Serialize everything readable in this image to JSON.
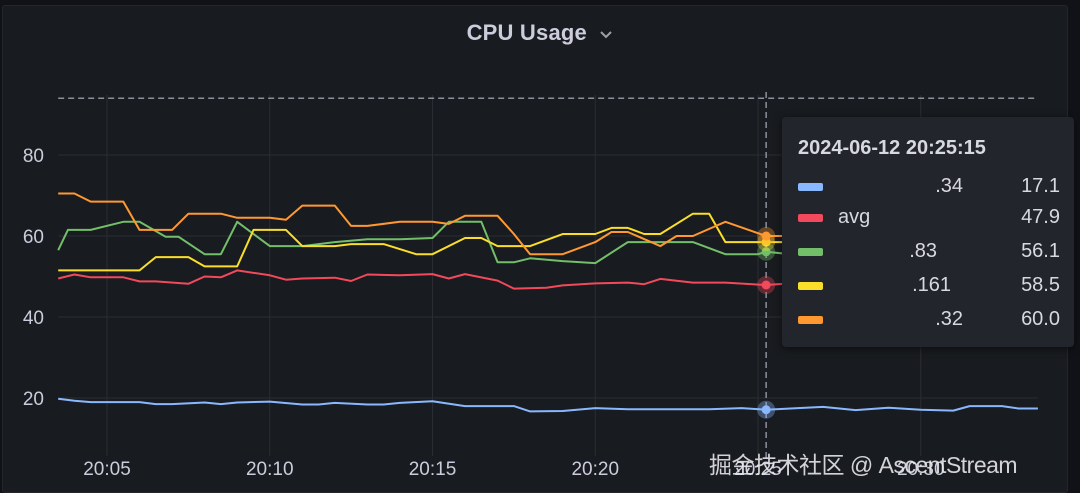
{
  "panel": {
    "title": "CPU Usage",
    "menu_icon": "chevron-down-icon"
  },
  "tooltip": {
    "timestamp": "2024-06-12 20:25:15",
    "rows": [
      {
        "name": ".34",
        "value": "17.1",
        "color": "#8ab8ff"
      },
      {
        "name": "avg",
        "value": "47.9",
        "color": "#f2495c"
      },
      {
        "name": ".83",
        "value": "56.1",
        "color": "#73bf69"
      },
      {
        "name": ".161",
        "value": "58.5",
        "color": "#fade2a"
      },
      {
        "name": ".32",
        "value": "60.0",
        "color": "#ff9830"
      }
    ]
  },
  "watermark": "掘金技术社区 @ AscentStream",
  "colors": {
    "background": "#181b1f",
    "grid": "#2a2d33",
    "axis_text": "#ccccdc",
    "threshold": "#8e8e9a"
  },
  "chart_data": {
    "type": "line",
    "title": "CPU Usage",
    "xlabel": "",
    "ylabel": "",
    "x_ticks": [
      "20:05",
      "20:10",
      "20:15",
      "20:20",
      "20:25",
      "20:30"
    ],
    "y_ticks": [
      20,
      40,
      60,
      80
    ],
    "ylim": [
      0,
      95
    ],
    "x_range_minutes": [
      3.5,
      33.6
    ],
    "threshold_line": 94,
    "grid": true,
    "legend_position": "tooltip",
    "hover_time_minute": 25.25,
    "series": [
      {
        "name": ".34",
        "color": "#8ab8ff",
        "x": [
          3.5,
          4.0,
          4.5,
          6.0,
          6.5,
          7.0,
          8.0,
          8.5,
          9.0,
          10.0,
          11.0,
          11.5,
          12.0,
          13.0,
          13.5,
          14.0,
          15.0,
          16.0,
          17.5,
          18.0,
          19.0,
          20.0,
          21.0,
          22.0,
          23.5,
          24.5,
          25.25,
          26.0,
          27.0,
          28.0,
          29.0,
          30.0,
          31.0,
          31.5,
          32.5,
          33.0,
          33.6
        ],
        "values": [
          19.8,
          19.3,
          19.0,
          19.0,
          18.5,
          18.5,
          18.9,
          18.5,
          18.9,
          19.1,
          18.4,
          18.4,
          18.8,
          18.4,
          18.4,
          18.8,
          19.2,
          18.0,
          18.0,
          16.7,
          16.8,
          17.5,
          17.2,
          17.2,
          17.2,
          17.5,
          17.1,
          17.4,
          17.8,
          17.0,
          17.6,
          17.1,
          16.9,
          18.0,
          18.0,
          17.4,
          17.4
        ]
      },
      {
        "name": "avg",
        "color": "#f2495c",
        "x": [
          3.5,
          4.0,
          4.5,
          5.5,
          6.0,
          6.5,
          7.5,
          8.0,
          8.5,
          9.0,
          10.0,
          10.5,
          11.0,
          12.0,
          12.5,
          13.0,
          14.0,
          15.0,
          15.5,
          16.0,
          17.0,
          17.5,
          18.5,
          19.0,
          20.0,
          21.0,
          21.5,
          22.0,
          23.0,
          24.0,
          25.25,
          26.0,
          27.0,
          28.0,
          29.0,
          30.0,
          31.0,
          32.0,
          33.0,
          33.6
        ],
        "values": [
          49.5,
          50.5,
          49.8,
          49.8,
          48.8,
          48.8,
          48.2,
          50.0,
          49.8,
          51.5,
          50.3,
          49.2,
          49.5,
          49.7,
          48.9,
          50.5,
          50.3,
          50.6,
          49.5,
          50.6,
          49.0,
          47.0,
          47.2,
          47.8,
          48.3,
          48.5,
          48.1,
          49.4,
          48.5,
          48.5,
          47.9,
          48.3,
          48.3,
          48.8,
          48.0,
          47.7,
          47.7,
          48.0,
          48.5,
          48.4
        ]
      },
      {
        "name": ".83",
        "color": "#73bf69",
        "x": [
          3.5,
          3.8,
          4.5,
          5.5,
          6.0,
          6.8,
          7.2,
          8.0,
          8.5,
          9.0,
          10.0,
          11.0,
          12.0,
          13.0,
          14.0,
          15.0,
          15.5,
          16.0,
          16.5,
          17.0,
          17.5,
          18.0,
          19.0,
          20.0,
          21.0,
          21.5,
          22.0,
          23.0,
          24.0,
          24.5,
          25.0,
          25.25,
          26.0,
          27.0,
          28.0,
          29.0,
          30.0,
          31.0,
          32.0,
          33.0,
          33.6
        ],
        "values": [
          56.5,
          61.5,
          61.5,
          63.5,
          63.5,
          59.8,
          59.8,
          55.5,
          55.5,
          63.5,
          57.5,
          57.5,
          58.5,
          59.2,
          59.2,
          59.5,
          63.5,
          63.5,
          63.5,
          53.5,
          53.5,
          54.5,
          53.8,
          53.3,
          58.5,
          58.5,
          58.5,
          58.5,
          55.5,
          55.5,
          55.5,
          56.1,
          55.5,
          56.0,
          57.0,
          57.5,
          57.0,
          57.5,
          57.0,
          58.5,
          58.0
        ]
      },
      {
        "name": ".161",
        "color": "#fade2a",
        "x": [
          3.5,
          6.0,
          6.5,
          7.5,
          8.0,
          9.0,
          9.5,
          10.5,
          11.0,
          12.0,
          12.5,
          13.5,
          14.5,
          15.0,
          16.0,
          16.5,
          17.0,
          18.0,
          19.0,
          20.0,
          20.5,
          21.0,
          21.5,
          22.0,
          23.0,
          23.5,
          24.0,
          24.5,
          25.25,
          26.0,
          27.0,
          28.0,
          29.0,
          30.0,
          31.0,
          32.0,
          33.0,
          33.6
        ],
        "values": [
          51.5,
          51.5,
          54.8,
          54.8,
          52.5,
          52.5,
          61.5,
          61.5,
          57.5,
          57.5,
          58.0,
          58.0,
          55.5,
          55.5,
          59.5,
          59.5,
          57.5,
          57.5,
          60.5,
          60.5,
          62.0,
          62.0,
          60.5,
          60.5,
          65.5,
          65.5,
          58.5,
          58.5,
          58.5,
          58.5,
          59.5,
          59.5,
          58.5,
          58.5,
          57.5,
          57.5,
          58.5,
          58.5
        ]
      },
      {
        "name": ".32",
        "color": "#ff9830",
        "x": [
          3.5,
          4.0,
          4.5,
          5.5,
          6.0,
          7.0,
          7.5,
          8.5,
          9.0,
          10.0,
          10.5,
          11.0,
          12.0,
          12.5,
          13.0,
          14.0,
          15.0,
          15.5,
          16.0,
          17.0,
          17.5,
          18.0,
          19.0,
          20.0,
          20.5,
          21.0,
          22.0,
          22.5,
          23.0,
          24.0,
          25.25,
          26.0,
          27.0,
          28.0,
          29.0,
          30.0,
          31.0,
          32.0,
          33.0,
          33.6
        ],
        "values": [
          70.5,
          70.5,
          68.5,
          68.5,
          61.5,
          61.5,
          65.5,
          65.5,
          64.5,
          64.5,
          64.0,
          67.5,
          67.5,
          62.5,
          62.5,
          63.5,
          63.5,
          63.0,
          65.0,
          65.0,
          60.5,
          55.5,
          55.5,
          58.5,
          61.0,
          61.0,
          57.5,
          60.0,
          60.0,
          63.5,
          60.0,
          60.0,
          59.0,
          59.0,
          59.5,
          59.0,
          59.5,
          59.0,
          60.0,
          59.5
        ]
      }
    ]
  }
}
